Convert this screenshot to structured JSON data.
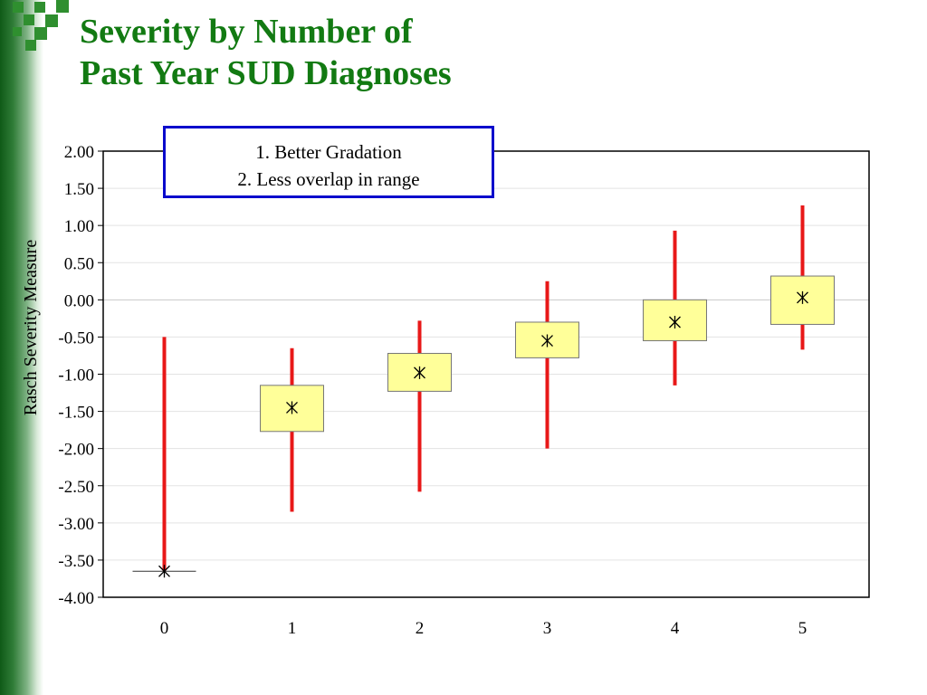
{
  "slide": {
    "title_line1": "Severity by Number of",
    "title_line2": "Past Year SUD Diagnoses",
    "callout_line1": "1. Better Gradation",
    "callout_line2": "2. Less overlap in range"
  },
  "colors": {
    "title": "#127a12",
    "whisker": "#e81818",
    "box_fill": "#ffff99",
    "callout_border": "#0a0acc",
    "left_bar": "#1e6b26"
  },
  "chart_data": {
    "type": "box",
    "title": "",
    "xlabel": "",
    "ylabel": "Rasch Severity Measure",
    "categories": [
      "0",
      "1",
      "2",
      "3",
      "4",
      "5"
    ],
    "yticks": [
      "2.00",
      "1.50",
      "1.00",
      "0.50",
      "0.00",
      "-0.50",
      "-1.00",
      "-1.50",
      "-2.00",
      "-2.50",
      "-3.00",
      "-3.50",
      "-4.00"
    ],
    "ylim": [
      -4,
      2
    ],
    "grid": true,
    "legend": "none",
    "series": [
      {
        "min": [
          -3.65,
          -2.85,
          -2.58,
          -2.0,
          -1.15,
          -0.67
        ],
        "q1": [
          -3.65,
          -1.77,
          -1.23,
          -0.78,
          -0.55,
          -0.33
        ],
        "median": [
          -3.65,
          -1.45,
          -0.98,
          -0.55,
          -0.3,
          0.03
        ],
        "q3": [
          -3.65,
          -1.15,
          -0.72,
          -0.3,
          0.0,
          0.32
        ],
        "max": [
          -0.5,
          -0.65,
          -0.28,
          0.25,
          0.93,
          1.27
        ]
      }
    ]
  }
}
